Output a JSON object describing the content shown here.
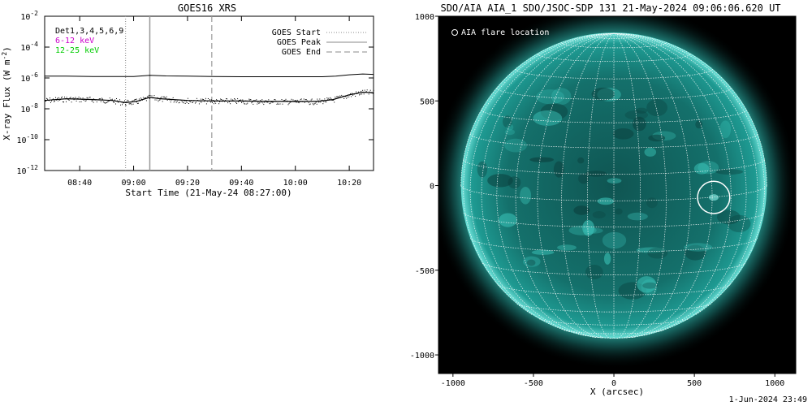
{
  "chart_data": [
    {
      "type": "line",
      "title": "GOES16 XRS",
      "ylabel": "X-ray Flux (W m",
      "ylabel_sup": "-2",
      "ylabel_end": ")",
      "xlabel": "Start Time (21-May-24 08:27:00)",
      "y_scale": "log",
      "ylim": [
        1e-12,
        0.01
      ],
      "y_ticks": [
        {
          "base": "10",
          "exp": "-2",
          "value": 0.01
        },
        {
          "base": "10",
          "exp": "-4",
          "value": 0.0001
        },
        {
          "base": "10",
          "exp": "-6",
          "value": 1e-06
        },
        {
          "base": "10",
          "exp": "-8",
          "value": 1e-08
        },
        {
          "base": "10",
          "exp": "-10",
          "value": 1e-10
        },
        {
          "base": "10",
          "exp": "-12",
          "value": 1e-12
        }
      ],
      "xlim": [
        "08:27",
        "10:29"
      ],
      "x_ticks": [
        "08:40",
        "09:00",
        "09:20",
        "09:40",
        "10:00",
        "10:20"
      ],
      "label_top": "Det1,3,4,5,6,9",
      "legend_left": [
        {
          "label": "6-12 keV",
          "color": "#cc00cc"
        },
        {
          "label": "12-25 keV",
          "color": "#00cc00"
        }
      ],
      "legend_right": [
        {
          "label": "GOES Start",
          "style": "dotted"
        },
        {
          "label": "GOES Peak",
          "style": "solid"
        },
        {
          "label": "GOES End",
          "style": "dashed"
        }
      ],
      "markers": {
        "start": "08:57",
        "peak": "09:06",
        "end": "09:29"
      },
      "series": [
        {
          "points": [
            [
              "08:27",
              1.3e-06
            ],
            [
              "08:35",
              1.3e-06
            ],
            [
              "08:45",
              1.25e-06
            ],
            [
              "08:55",
              1.25e-06
            ],
            [
              "09:00",
              1.25e-06
            ],
            [
              "09:03",
              1.35e-06
            ],
            [
              "09:06",
              1.5e-06
            ],
            [
              "09:12",
              1.35e-06
            ],
            [
              "09:20",
              1.3e-06
            ],
            [
              "09:30",
              1.25e-06
            ],
            [
              "09:40",
              1.2e-06
            ],
            [
              "09:50",
              1.2e-06
            ],
            [
              "10:00",
              1.2e-06
            ],
            [
              "10:10",
              1.2e-06
            ],
            [
              "10:15",
              1.3e-06
            ],
            [
              "10:20",
              1.6e-06
            ],
            [
              "10:25",
              1.8e-06
            ],
            [
              "10:29",
              1.7e-06
            ]
          ]
        },
        {
          "points": [
            [
              "08:27",
              3.5e-08
            ],
            [
              "08:35",
              4.5e-08
            ],
            [
              "08:45",
              4e-08
            ],
            [
              "08:52",
              3.5e-08
            ],
            [
              "08:57",
              2.5e-08
            ],
            [
              "09:01",
              3e-08
            ],
            [
              "09:06",
              5.5e-08
            ],
            [
              "09:10",
              4.5e-08
            ],
            [
              "09:20",
              3.5e-08
            ],
            [
              "09:30",
              3.2e-08
            ],
            [
              "09:40",
              3.2e-08
            ],
            [
              "09:50",
              3e-08
            ],
            [
              "10:00",
              3e-08
            ],
            [
              "10:08",
              3e-08
            ],
            [
              "10:14",
              4e-08
            ],
            [
              "10:20",
              8e-08
            ],
            [
              "10:25",
              1.2e-07
            ],
            [
              "10:29",
              1.1e-07
            ]
          ]
        }
      ]
    },
    {
      "type": "image",
      "title": "SDO/AIA AIA_1 SDO/JSOC-SDP 131 21-May-2024 09:06:06.620 UT",
      "xlabel": "X (arcsec)",
      "xlim": [
        -1090,
        1130
      ],
      "ylim": [
        -1110,
        1000
      ],
      "x_ticks": [
        -1000,
        -500,
        0,
        500,
        1000
      ],
      "y_ticks": [
        1000,
        500,
        0,
        -500,
        -1000
      ],
      "legend": "AIA flare location",
      "flare_location": {
        "x": 620,
        "y": -70,
        "radius": 100
      },
      "solar_radius": 950,
      "grid_spacing_deg": 10,
      "disk_color": "#1a8c86",
      "limb_color": "#6fe3da",
      "background_color": "#000000"
    }
  ],
  "footer": "1-Jun-2024 23:49"
}
